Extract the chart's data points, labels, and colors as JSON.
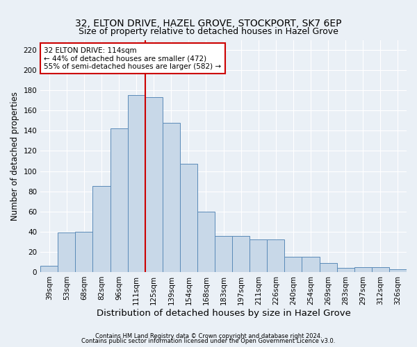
{
  "title": "32, ELTON DRIVE, HAZEL GROVE, STOCKPORT, SK7 6EP",
  "subtitle": "Size of property relative to detached houses in Hazel Grove",
  "xlabel": "Distribution of detached houses by size in Hazel Grove",
  "ylabel": "Number of detached properties",
  "footnote1": "Contains HM Land Registry data © Crown copyright and database right 2024.",
  "footnote2": "Contains public sector information licensed under the Open Government Licence v3.0.",
  "categories": [
    "39sqm",
    "53sqm",
    "68sqm",
    "82sqm",
    "96sqm",
    "111sqm",
    "125sqm",
    "139sqm",
    "154sqm",
    "168sqm",
    "183sqm",
    "197sqm",
    "211sqm",
    "226sqm",
    "240sqm",
    "254sqm",
    "269sqm",
    "283sqm",
    "297sqm",
    "312sqm",
    "326sqm"
  ],
  "values": [
    6,
    39,
    40,
    85,
    142,
    175,
    173,
    148,
    107,
    60,
    36,
    36,
    32,
    32,
    15,
    15,
    9,
    4,
    5,
    5,
    3
  ],
  "bar_color": "#c8d8e8",
  "bar_edge_color": "#5a8ab8",
  "vline_x": 5.5,
  "vline_color": "#cc0000",
  "annotation_text": "32 ELTON DRIVE: 114sqm\n← 44% of detached houses are smaller (472)\n55% of semi-detached houses are larger (582) →",
  "annotation_box_color": "#cc0000",
  "ylim": [
    0,
    230
  ],
  "yticks": [
    0,
    20,
    40,
    60,
    80,
    100,
    120,
    140,
    160,
    180,
    200,
    220
  ],
  "background_color": "#eaf0f6",
  "plot_background": "#eaf0f6",
  "grid_color": "#ffffff",
  "title_fontsize": 10,
  "subtitle_fontsize": 9,
  "xlabel_fontsize": 9.5,
  "ylabel_fontsize": 8.5,
  "tick_fontsize": 7.5,
  "annotation_fontsize": 7.5,
  "footnote_fontsize": 6.0
}
